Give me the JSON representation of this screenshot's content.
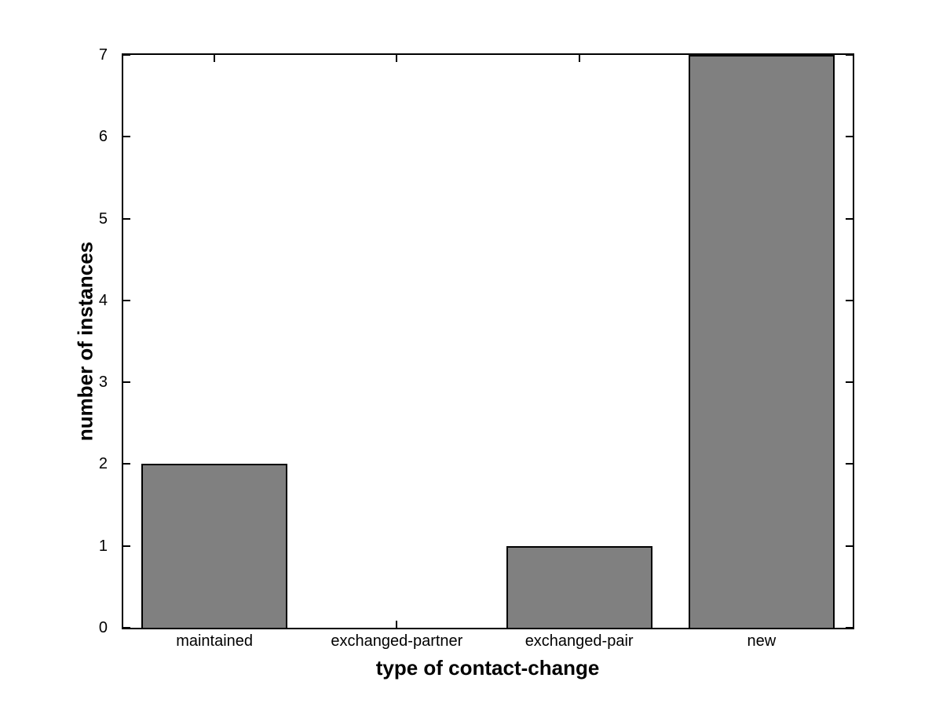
{
  "chart_data": {
    "type": "bar",
    "categories": [
      "maintained",
      "exchanged-partner",
      "exchanged-pair",
      "new"
    ],
    "values": [
      2,
      0,
      1,
      7
    ],
    "title": "",
    "xlabel": "type of contact-change",
    "ylabel": "number of instances",
    "ylim": [
      0,
      7
    ],
    "yticks": [
      0,
      1,
      2,
      3,
      4,
      5,
      6,
      7
    ],
    "bar_width_fraction": 0.8,
    "grid": false,
    "legend": false,
    "colors": {
      "bar_fill": "#808080",
      "bar_edge": "#000000",
      "axis": "#000000",
      "text": "#000000",
      "background": "#ffffff"
    }
  }
}
